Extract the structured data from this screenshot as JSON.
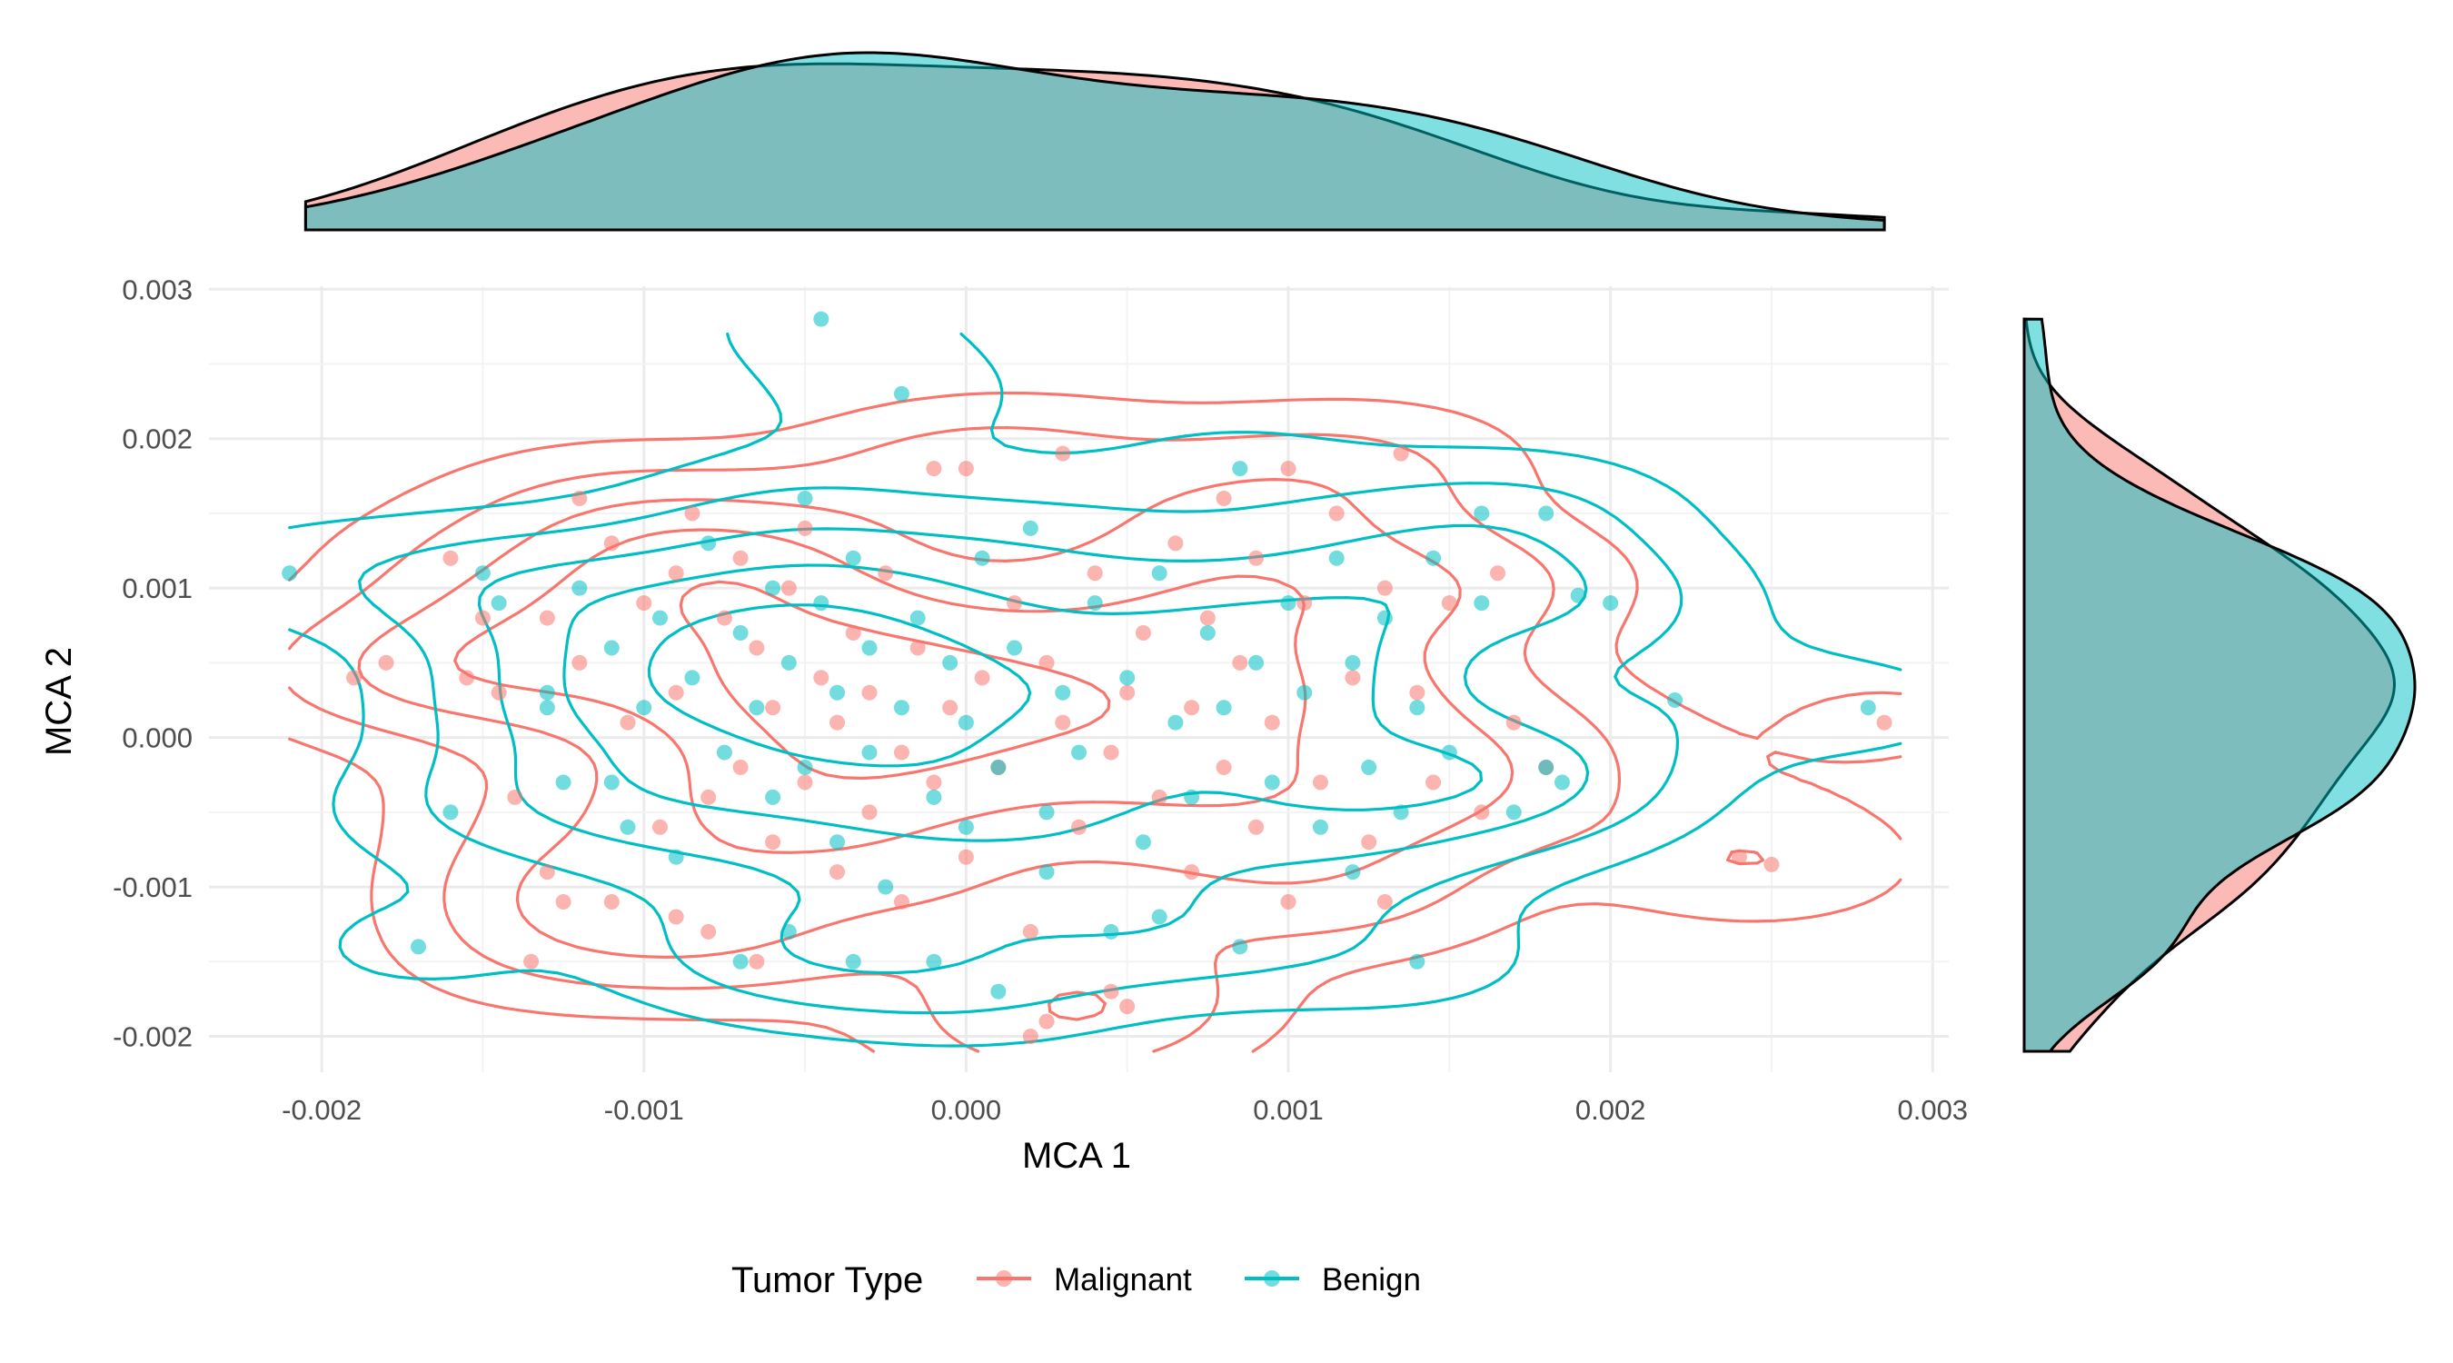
{
  "chart_data": {
    "type": "scatter",
    "title": "",
    "xlabel": "MCA 1",
    "ylabel": "MCA 2",
    "xlim": [
      -0.00235,
      0.00305
    ],
    "ylim": [
      -0.00224,
      0.00302
    ],
    "x_ticks": [
      -0.002,
      -0.001,
      0.0,
      0.001,
      0.002,
      0.003
    ],
    "x_tick_labels": [
      "-0.002",
      "-0.001",
      "0.000",
      "0.001",
      "0.002",
      "0.003"
    ],
    "y_ticks": [
      -0.002,
      -0.001,
      0.0,
      0.001,
      0.002,
      0.003
    ],
    "y_tick_labels": [
      "-0.002",
      "-0.001",
      "0.000",
      "0.001",
      "0.002",
      "0.003"
    ],
    "grid": true,
    "legend": {
      "title": "Tumor Type",
      "placement": "bottom"
    },
    "marginal_densities": {
      "top": "MCA 1",
      "right": "MCA 2"
    },
    "density_contours": true,
    "series": [
      {
        "name": "Malignant",
        "color": "#F8766D",
        "points": [
          [
            -0.0019,
            0.0004
          ],
          [
            -0.0018,
            0.0005
          ],
          [
            -0.0016,
            0.0012
          ],
          [
            -0.00155,
            0.0004
          ],
          [
            -0.0015,
            0.0008
          ],
          [
            -0.00145,
            0.0003
          ],
          [
            -0.0014,
            -0.0004
          ],
          [
            -0.00135,
            -0.0015
          ],
          [
            -0.0013,
            0.0008
          ],
          [
            -0.0013,
            -0.0009
          ],
          [
            -0.0012,
            0.0016
          ],
          [
            -0.0012,
            0.0005
          ],
          [
            -0.0011,
            0.0013
          ],
          [
            -0.0011,
            -0.0011
          ],
          [
            -0.00105,
            0.0001
          ],
          [
            -0.001,
            0.0009
          ],
          [
            -0.00095,
            -0.0006
          ],
          [
            -0.0009,
            0.0011
          ],
          [
            -0.0009,
            -0.0012
          ],
          [
            -0.0009,
            0.0003
          ],
          [
            -0.00085,
            0.0015
          ],
          [
            -0.0008,
            -0.0004
          ],
          [
            -0.00075,
            0.0008
          ],
          [
            -0.0007,
            -0.0002
          ],
          [
            -0.0007,
            0.0012
          ],
          [
            -0.00065,
            0.0006
          ],
          [
            -0.0006,
            -0.0007
          ],
          [
            -0.0006,
            0.0002
          ],
          [
            -0.00055,
            0.001
          ],
          [
            -0.0005,
            -0.0003
          ],
          [
            -0.0005,
            0.0014
          ],
          [
            -0.00045,
            0.0004
          ],
          [
            -0.0004,
            -0.0009
          ],
          [
            -0.0004,
            0.0001
          ],
          [
            -0.00035,
            0.0007
          ],
          [
            -0.0003,
            -0.0005
          ],
          [
            -0.0003,
            0.0003
          ],
          [
            -0.00025,
            0.0011
          ],
          [
            -0.0002,
            -0.0001
          ],
          [
            -0.0002,
            -0.0011
          ],
          [
            -0.00015,
            0.0006
          ],
          [
            -0.0001,
            -0.0003
          ],
          [
            -0.0001,
            0.0018
          ],
          [
            -5e-05,
            0.0002
          ],
          [
            0.0,
            -0.0008
          ],
          [
            0.0,
            0.0018
          ],
          [
            5e-05,
            0.0004
          ],
          [
            0.0001,
            -0.0002
          ],
          [
            0.00015,
            0.0009
          ],
          [
            0.0002,
            -0.0013
          ],
          [
            0.00025,
            0.0005
          ],
          [
            0.0003,
            0.0001
          ],
          [
            0.0003,
            0.0019
          ],
          [
            0.00035,
            -0.0006
          ],
          [
            0.0004,
            0.0011
          ],
          [
            0.00045,
            -0.0001
          ],
          [
            0.0005,
            0.0003
          ],
          [
            0.0005,
            -0.0018
          ],
          [
            0.00055,
            0.0007
          ],
          [
            0.0006,
            -0.0004
          ],
          [
            0.00065,
            0.0013
          ],
          [
            0.0007,
            0.0002
          ],
          [
            0.0007,
            -0.0009
          ],
          [
            0.00075,
            0.0008
          ],
          [
            0.0008,
            -0.0002
          ],
          [
            0.0008,
            0.0016
          ],
          [
            0.00085,
            0.0005
          ],
          [
            0.0009,
            -0.0006
          ],
          [
            0.0009,
            0.0012
          ],
          [
            0.00095,
            0.0001
          ],
          [
            0.001,
            -0.0011
          ],
          [
            0.001,
            0.0018
          ],
          [
            0.00105,
            0.0009
          ],
          [
            0.0011,
            -0.0003
          ],
          [
            0.00115,
            0.0015
          ],
          [
            0.0012,
            0.0004
          ],
          [
            0.00125,
            -0.0007
          ],
          [
            0.0013,
            0.001
          ],
          [
            0.00135,
            0.0019
          ],
          [
            0.0014,
            0.0003
          ],
          [
            0.00145,
            -0.0003
          ],
          [
            0.0015,
            0.0009
          ],
          [
            0.0016,
            -0.0005
          ],
          [
            0.00165,
            0.0011
          ],
          [
            0.0017,
            0.0001
          ],
          [
            0.0018,
            -0.0002
          ],
          [
            0.0024,
            -0.0008
          ],
          [
            0.0025,
            -0.00085
          ],
          [
            0.00285,
            0.0001
          ],
          [
            -0.00125,
            -0.0011
          ],
          [
            -0.0008,
            -0.0013
          ],
          [
            -0.00065,
            -0.0015
          ],
          [
            0.0002,
            -0.002
          ],
          [
            0.00025,
            -0.0019
          ],
          [
            0.00045,
            -0.0017
          ],
          [
            0.0013,
            -0.0011
          ]
        ]
      },
      {
        "name": "Benign",
        "color": "#00BFC4",
        "points": [
          [
            -0.0021,
            0.0011
          ],
          [
            -0.0017,
            -0.0014
          ],
          [
            -0.0016,
            -0.0005
          ],
          [
            -0.0015,
            0.0011
          ],
          [
            -0.00145,
            0.0009
          ],
          [
            -0.0013,
            0.0003
          ],
          [
            -0.00125,
            -0.0003
          ],
          [
            -0.0012,
            0.001
          ],
          [
            -0.0011,
            0.0006
          ],
          [
            -0.00105,
            -0.0006
          ],
          [
            -0.001,
            0.0002
          ],
          [
            -0.00095,
            0.0008
          ],
          [
            -0.0009,
            -0.0008
          ],
          [
            -0.00085,
            0.0004
          ],
          [
            -0.0008,
            0.0013
          ],
          [
            -0.00075,
            -0.0001
          ],
          [
            -0.0007,
            0.0007
          ],
          [
            -0.0007,
            -0.0015
          ],
          [
            -0.00065,
            0.0002
          ],
          [
            -0.0006,
            -0.0004
          ],
          [
            -0.0006,
            0.001
          ],
          [
            -0.00055,
            0.0005
          ],
          [
            -0.0005,
            -0.0002
          ],
          [
            -0.0005,
            0.0016
          ],
          [
            -0.00045,
            0.0009
          ],
          [
            -0.00045,
            0.0028
          ],
          [
            -0.0004,
            -0.0007
          ],
          [
            -0.0004,
            0.0003
          ],
          [
            -0.00035,
            0.0012
          ],
          [
            -0.0003,
            -0.0001
          ],
          [
            -0.0003,
            0.0006
          ],
          [
            -0.00025,
            -0.001
          ],
          [
            -0.0002,
            0.0002
          ],
          [
            -0.0002,
            0.0023
          ],
          [
            -0.00015,
            0.0008
          ],
          [
            -0.0001,
            -0.0004
          ],
          [
            -0.0001,
            -0.0015
          ],
          [
            -5e-05,
            0.0005
          ],
          [
            0.0,
            0.0001
          ],
          [
            0.0,
            -0.0006
          ],
          [
            5e-05,
            0.0012
          ],
          [
            0.0001,
            -0.0002
          ],
          [
            0.0001,
            -0.0017
          ],
          [
            0.00015,
            0.0006
          ],
          [
            0.0002,
            0.0014
          ],
          [
            0.00025,
            -0.0005
          ],
          [
            0.0003,
            0.0003
          ],
          [
            0.00035,
            -0.0001
          ],
          [
            0.0004,
            0.0009
          ],
          [
            0.00045,
            -0.0013
          ],
          [
            0.0005,
            0.0004
          ],
          [
            0.00055,
            -0.0007
          ],
          [
            0.0006,
            0.0011
          ],
          [
            0.00065,
            0.0001
          ],
          [
            0.0007,
            -0.0004
          ],
          [
            0.00075,
            0.0007
          ],
          [
            0.0008,
            0.0002
          ],
          [
            0.00085,
            -0.0014
          ],
          [
            0.00085,
            0.0018
          ],
          [
            0.0009,
            0.0005
          ],
          [
            0.00095,
            -0.0003
          ],
          [
            0.001,
            0.0009
          ],
          [
            0.00105,
            0.0003
          ],
          [
            0.0011,
            -0.0006
          ],
          [
            0.00115,
            0.0012
          ],
          [
            0.0012,
            0.0005
          ],
          [
            0.00125,
            -0.0002
          ],
          [
            0.0013,
            0.0008
          ],
          [
            0.00135,
            -0.0005
          ],
          [
            0.0014,
            0.0002
          ],
          [
            0.0014,
            -0.0015
          ],
          [
            0.00145,
            0.0012
          ],
          [
            0.0015,
            -0.0001
          ],
          [
            0.0016,
            0.0009
          ],
          [
            0.0016,
            0.0015
          ],
          [
            0.0018,
            -0.0002
          ],
          [
            0.0018,
            0.0015
          ],
          [
            0.00185,
            -0.0003
          ],
          [
            0.0019,
            0.00095
          ],
          [
            0.002,
            0.0009
          ],
          [
            0.0022,
            0.00025
          ],
          [
            0.0028,
            0.0002
          ],
          [
            -0.0011,
            -0.0003
          ],
          [
            -0.00055,
            -0.0013
          ],
          [
            -0.00035,
            -0.0015
          ],
          [
            0.00025,
            -0.0009
          ],
          [
            0.0006,
            -0.0012
          ],
          [
            0.0012,
            -0.0009
          ],
          [
            0.0017,
            -0.0005
          ],
          [
            -0.0013,
            0.0002
          ]
        ]
      }
    ]
  }
}
